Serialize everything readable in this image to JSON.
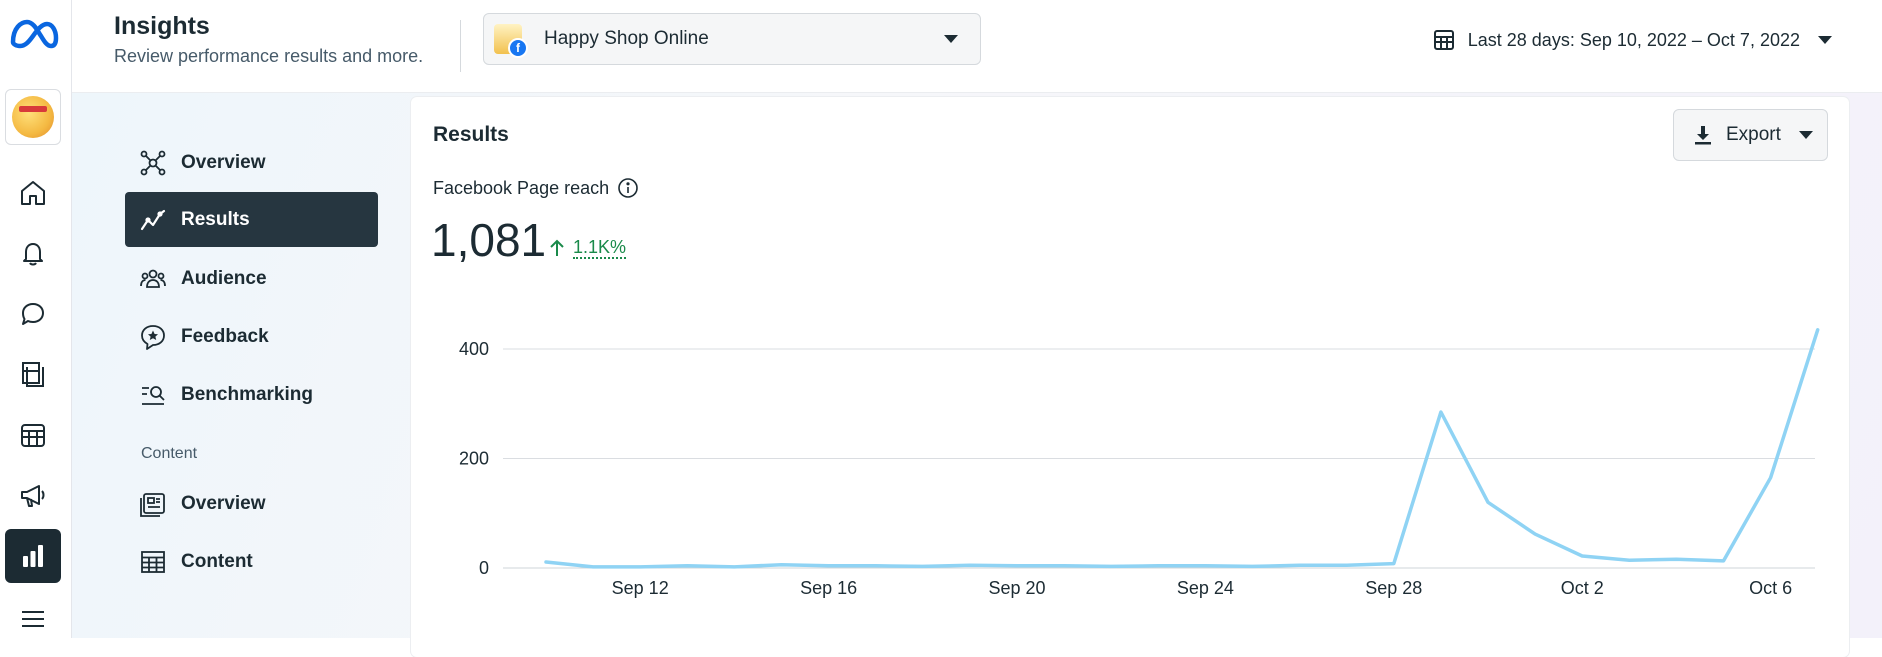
{
  "app": {
    "brand_icon": "meta-logo"
  },
  "header": {
    "title": "Insights",
    "subtitle": "Review performance results and more.",
    "page_selector": {
      "label": "Happy Shop Online"
    },
    "date_range": {
      "label": "Last 28 days: Sep 10, 2022 – Oct 7, 2022"
    }
  },
  "rail": {
    "items": [
      {
        "name": "home",
        "icon": "home-icon"
      },
      {
        "name": "notifications",
        "icon": "bell-icon"
      },
      {
        "name": "messages",
        "icon": "chat-bubble-icon"
      },
      {
        "name": "posts",
        "icon": "pages-icon"
      },
      {
        "name": "calendar",
        "icon": "calendar-grid-icon"
      },
      {
        "name": "ads",
        "icon": "megaphone-icon"
      },
      {
        "name": "insights",
        "icon": "bar-chart-icon",
        "active": true
      },
      {
        "name": "menu",
        "icon": "hamburger-icon"
      }
    ]
  },
  "nav": {
    "items": [
      {
        "label": "Overview",
        "icon": "network-icon"
      },
      {
        "label": "Results",
        "icon": "trend-line-icon",
        "active": true
      },
      {
        "label": "Audience",
        "icon": "people-icon"
      },
      {
        "label": "Feedback",
        "icon": "star-bubble-icon"
      },
      {
        "label": "Benchmarking",
        "icon": "search-list-icon"
      }
    ],
    "section_label": "Content",
    "content_items": [
      {
        "label": "Overview",
        "icon": "content-overview-icon"
      },
      {
        "label": "Content",
        "icon": "table-icon"
      }
    ]
  },
  "results": {
    "title": "Results",
    "export_label": "Export",
    "metric_label": "Facebook Page reach",
    "metric_value": "1,081",
    "metric_change": "1.1K%",
    "colors": {
      "line": "#8fd3f4",
      "positive": "#1a8a4a",
      "active_nav": "#263640"
    }
  },
  "chart_data": {
    "type": "line",
    "x": [
      "Sep 10",
      "Sep 11",
      "Sep 12",
      "Sep 13",
      "Sep 14",
      "Sep 15",
      "Sep 16",
      "Sep 17",
      "Sep 18",
      "Sep 19",
      "Sep 20",
      "Sep 21",
      "Sep 22",
      "Sep 23",
      "Sep 24",
      "Sep 25",
      "Sep 26",
      "Sep 27",
      "Sep 28",
      "Sep 29",
      "Sep 30",
      "Oct 1",
      "Oct 2",
      "Oct 3",
      "Oct 4",
      "Oct 5",
      "Oct 6",
      "Oct 7"
    ],
    "x_tick_labels": [
      "Sep 12",
      "Sep 16",
      "Sep 20",
      "Sep 24",
      "Sep 28",
      "Oct 2",
      "Oct 6"
    ],
    "series": [
      {
        "values": [
          11,
          2,
          2,
          4,
          2,
          6,
          4,
          4,
          3,
          5,
          4,
          4,
          3,
          4,
          4,
          3,
          5,
          5,
          8,
          285,
          120,
          62,
          22,
          14,
          16,
          13,
          165,
          435
        ]
      }
    ],
    "y_ticks": [
      0,
      200,
      400
    ],
    "ylim": [
      0,
      440
    ],
    "grid": true,
    "legend": "none",
    "xlabel": "",
    "ylabel": ""
  }
}
